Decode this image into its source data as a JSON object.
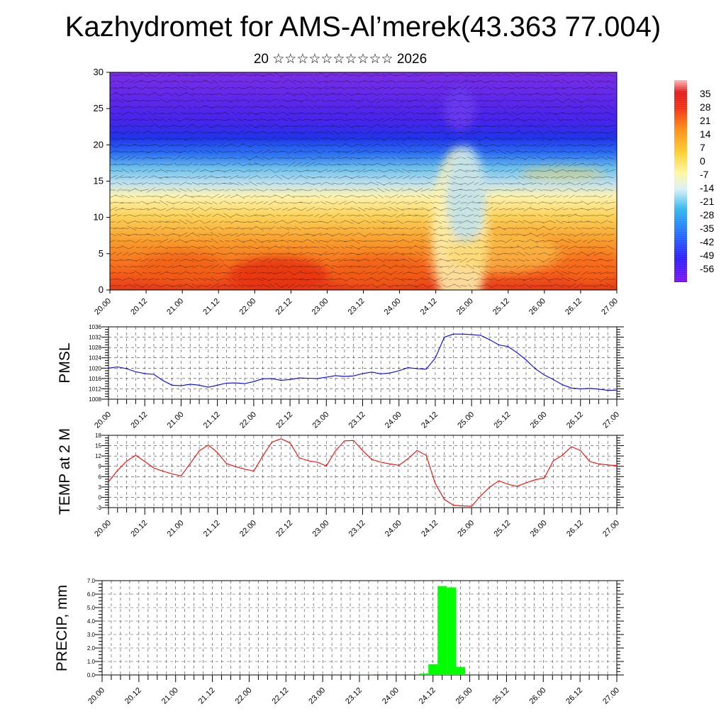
{
  "title": "Kazhydromet for AMS-Al’merek(43.363 77.004)",
  "subtitle": "20 ☆☆☆☆☆☆☆☆☆☆ 2026",
  "colors": {
    "pmsl_line": "#0000ff",
    "temp_line": "#ff0000",
    "precip_bar": "#00ff00",
    "contour_warm": "#ff4a10",
    "contour_cold": "#6a20ff"
  },
  "chart_data": [
    {
      "type": "heatmap",
      "name": "temperature-cross-section",
      "ylim": [
        0,
        30
      ],
      "yticks": [
        "0",
        "5",
        "10",
        "15",
        "20",
        "25",
        "30"
      ],
      "x_labels": [
        "20.00",
        "20.12",
        "21.00",
        "21.12",
        "22.00",
        "22.12",
        "23.00",
        "23.12",
        "24.00",
        "24.12",
        "25.00",
        "25.12",
        "26.00",
        "26.12",
        "27.00"
      ],
      "colorbar_labels": [
        "35",
        "28",
        "21",
        "14",
        "7",
        "0",
        "-7",
        "-14",
        "-21",
        "-28",
        "-35",
        "-42",
        "-49",
        "-56"
      ],
      "colorbar_range": [
        -63,
        42
      ]
    },
    {
      "type": "line",
      "name": "pmsl",
      "ylabel": "PMSL",
      "ylim": [
        1008,
        1036
      ],
      "yticks": [
        "1008",
        "1012",
        "1016",
        "1020",
        "1024",
        "1028",
        "1032",
        "1036"
      ],
      "x_labels": [
        "20.00",
        "20.12",
        "21.00",
        "21.12",
        "22.00",
        "22.12",
        "23.00",
        "23.12",
        "24.00",
        "24.12",
        "25.00",
        "25.12",
        "26.00",
        "26.12",
        "27.00"
      ],
      "x_hours": [
        0,
        3,
        6,
        9,
        12,
        15,
        18,
        21,
        24,
        27,
        30,
        33,
        36,
        39,
        42,
        45,
        48,
        51,
        54,
        57,
        60,
        63,
        66,
        69,
        72,
        75,
        78,
        81,
        84,
        87,
        90,
        93,
        96,
        99,
        102,
        105,
        108,
        111,
        114,
        117,
        120,
        123,
        126,
        129,
        132,
        135,
        138,
        141,
        144,
        147,
        150,
        153,
        156,
        159,
        162,
        165,
        168
      ],
      "values": [
        1020.0,
        1020.5,
        1019.8,
        1018.6,
        1017.9,
        1017.6,
        1015.2,
        1013.4,
        1013.2,
        1013.8,
        1013.4,
        1012.6,
        1013.4,
        1014.2,
        1014.3,
        1014.0,
        1014.8,
        1015.9,
        1016.0,
        1015.3,
        1015.6,
        1016.2,
        1016.1,
        1016.0,
        1016.5,
        1017.1,
        1016.8,
        1017.0,
        1017.9,
        1018.5,
        1017.8,
        1018.1,
        1019.0,
        1020.2,
        1019.8,
        1019.6,
        1023.9,
        1032.0,
        1033.2,
        1033.2,
        1033.0,
        1032.7,
        1031.0,
        1029.0,
        1028.4,
        1026.0,
        1023.2,
        1019.8,
        1017.4,
        1015.6,
        1013.6,
        1012.3,
        1012.0,
        1012.2,
        1011.9,
        1011.4,
        1011.5
      ]
    },
    {
      "type": "line",
      "name": "temp-2m",
      "ylabel": "TEMP at 2 M",
      "ylim": [
        -3,
        18
      ],
      "yticks": [
        "-3",
        "0",
        "3",
        "6",
        "9",
        "12",
        "15",
        "18"
      ],
      "x_labels": [
        "20.00",
        "20.12",
        "21.00",
        "21.12",
        "22.00",
        "22.12",
        "23.00",
        "23.12",
        "24.00",
        "24.12",
        "25.00",
        "25.12",
        "26.00",
        "26.12",
        "27.00"
      ],
      "x_hours": [
        0,
        3,
        6,
        9,
        12,
        15,
        18,
        21,
        24,
        27,
        30,
        33,
        36,
        39,
        42,
        45,
        48,
        51,
        54,
        57,
        60,
        63,
        66,
        69,
        72,
        75,
        78,
        81,
        84,
        87,
        90,
        93,
        96,
        99,
        102,
        105,
        108,
        111,
        114,
        117,
        120,
        123,
        126,
        129,
        132,
        135,
        138,
        141,
        144,
        147,
        150,
        153,
        156,
        159,
        162,
        165,
        168
      ],
      "values": [
        4.5,
        7.8,
        10.5,
        12.2,
        10.4,
        8.5,
        7.6,
        6.8,
        6.2,
        9.8,
        13.5,
        15.2,
        13.0,
        9.8,
        8.9,
        8.2,
        7.6,
        12.0,
        16.0,
        17.0,
        15.8,
        11.5,
        10.6,
        10.2,
        9.1,
        13.5,
        16.4,
        16.5,
        13.6,
        11.0,
        10.2,
        9.7,
        9.3,
        11.2,
        13.6,
        12.2,
        4.0,
        -0.6,
        -2.3,
        -2.5,
        -2.6,
        0.4,
        3.0,
        4.8,
        3.8,
        3.2,
        4.2,
        5.1,
        5.6,
        10.6,
        12.2,
        14.7,
        13.6,
        10.4,
        9.7,
        9.4,
        9.2
      ]
    },
    {
      "type": "bar",
      "name": "precip",
      "ylabel": "PRECIP, mm",
      "ylim": [
        0,
        7
      ],
      "yticks": [
        "0.0",
        "1.0",
        "2.0",
        "3.0",
        "4.0",
        "5.0",
        "6.0",
        "7.0"
      ],
      "x_labels": [
        "20.00",
        "20.12",
        "21.00",
        "21.12",
        "22.00",
        "22.12",
        "23.00",
        "23.12",
        "24.00",
        "24.12",
        "25.00",
        "25.12",
        "26.00",
        "26.12",
        "27.00"
      ],
      "bars": [
        {
          "hour": 84,
          "value": 0.05
        },
        {
          "hour": 87,
          "value": 0.05
        },
        {
          "hour": 105,
          "value": 0.1
        },
        {
          "hour": 108,
          "value": 0.8
        },
        {
          "hour": 111,
          "value": 6.6
        },
        {
          "hour": 114,
          "value": 6.5
        },
        {
          "hour": 117,
          "value": 0.6
        }
      ]
    }
  ]
}
